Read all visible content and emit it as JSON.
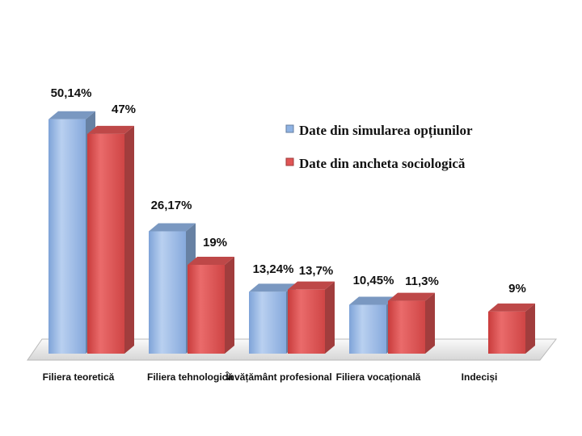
{
  "chart_data": {
    "type": "bar",
    "categories": [
      "Filiera teoretică",
      "Filiera tehnologică",
      "Învățământ profesional",
      "Filiera vocațională",
      "Indeciși"
    ],
    "series": [
      {
        "name": "Date din simularea opțiunilor",
        "values": [
          50.14,
          26.17,
          13.24,
          10.45,
          null
        ],
        "labels": [
          "50,14%",
          "26,17%",
          "13,24%",
          "10,45%",
          ""
        ],
        "color": "#8fb3e3"
      },
      {
        "name": "Date din ancheta sociologică",
        "values": [
          47,
          19,
          13.7,
          11.3,
          9
        ],
        "labels": [
          "47%",
          "19%",
          "13,7%",
          "11,3%",
          "9%"
        ],
        "color": "#e05555"
      }
    ],
    "ylim": [
      0,
      55
    ],
    "grid": false,
    "legend_position": "top-right",
    "style": "3d-column"
  }
}
